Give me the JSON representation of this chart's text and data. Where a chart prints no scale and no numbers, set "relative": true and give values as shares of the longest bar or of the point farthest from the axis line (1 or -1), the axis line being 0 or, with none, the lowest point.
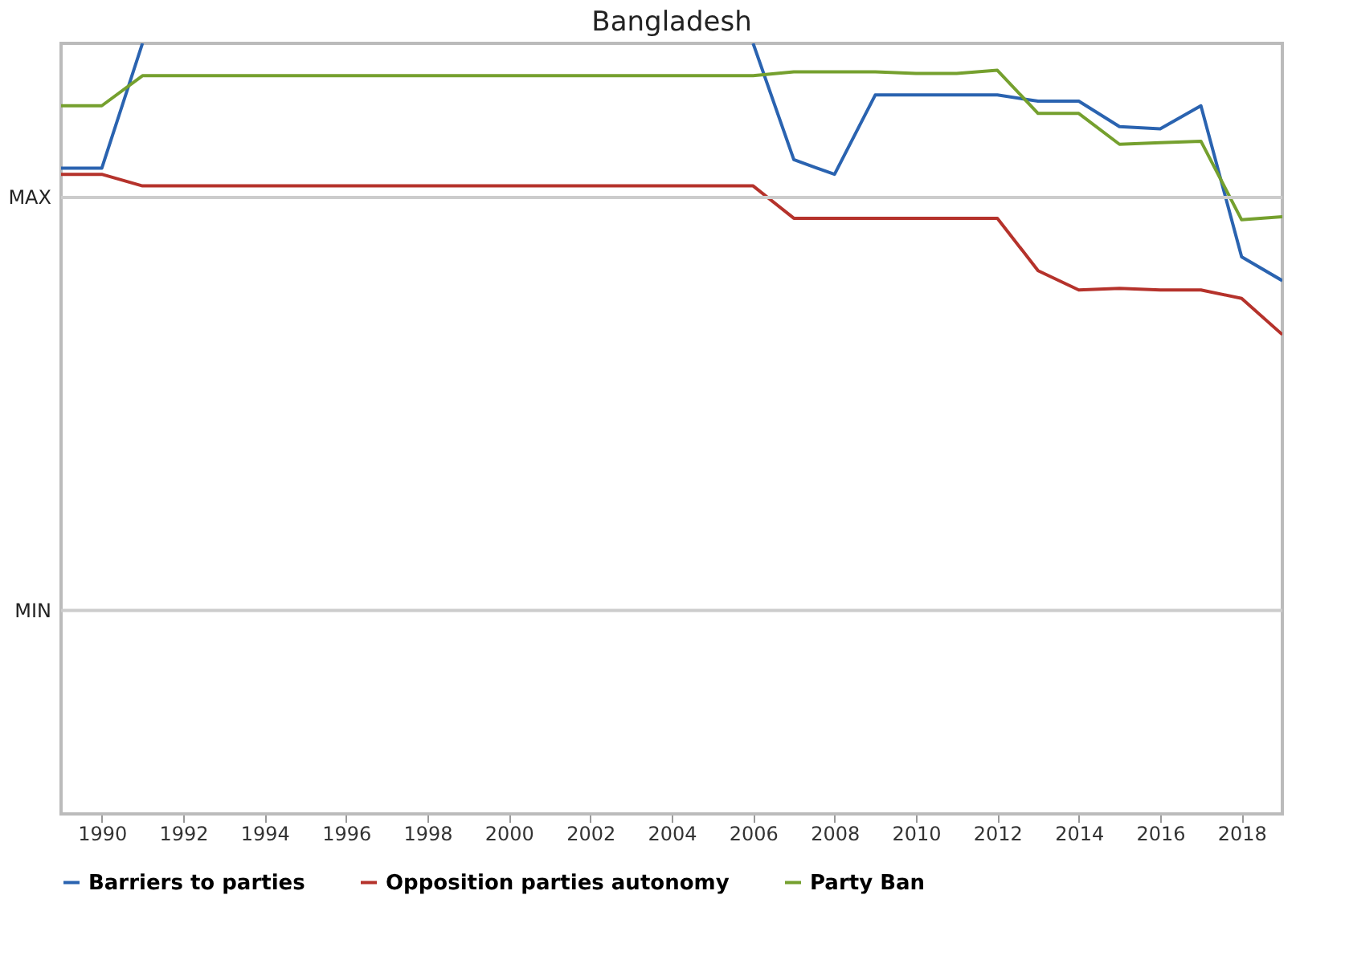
{
  "chart_data": {
    "type": "line",
    "title": "Bangladesh",
    "relative": true,
    "x": [
      1989,
      1990,
      1991,
      1992,
      1993,
      1994,
      1995,
      1996,
      1997,
      1998,
      1999,
      2000,
      2001,
      2002,
      2003,
      2004,
      2005,
      2006,
      2007,
      2008,
      2009,
      2010,
      2011,
      2012,
      2013,
      2014,
      2015,
      2016,
      2017,
      2018,
      2019
    ],
    "series": [
      {
        "name": "Barriers to parties",
        "color": "#2a63b0",
        "values": [
          0.838,
          0.838,
          1,
          null,
          null,
          null,
          null,
          null,
          null,
          null,
          null,
          null,
          null,
          null,
          null,
          null,
          null,
          1,
          0.849,
          0.83,
          0.933,
          0.933,
          0.933,
          0.933,
          0.925,
          0.925,
          0.892,
          0.889,
          0.919,
          0.723,
          0.692
        ]
      },
      {
        "name": "Opposition parties autonomy",
        "color": "#b5322b",
        "values": [
          0.83,
          0.83,
          0.815,
          0.815,
          0.815,
          0.815,
          0.815,
          0.815,
          0.815,
          0.815,
          0.815,
          0.815,
          0.815,
          0.815,
          0.815,
          0.815,
          0.815,
          0.815,
          0.773,
          0.773,
          0.773,
          0.773,
          0.773,
          0.773,
          0.705,
          0.68,
          0.682,
          0.68,
          0.68,
          0.669,
          0.622
        ]
      },
      {
        "name": "Party Ban",
        "color": "#75a02e",
        "values": [
          0.919,
          0.919,
          0.958,
          0.958,
          0.958,
          0.958,
          0.958,
          0.958,
          0.958,
          0.958,
          0.958,
          0.958,
          0.958,
          0.958,
          0.958,
          0.958,
          0.958,
          0.958,
          0.963,
          0.963,
          0.963,
          0.961,
          0.961,
          0.965,
          0.909,
          0.909,
          0.869,
          0.871,
          0.873,
          0.771,
          0.775
        ]
      }
    ],
    "xlim": [
      1989,
      2019
    ],
    "xticks": [
      1990,
      1992,
      1994,
      1996,
      1998,
      2000,
      2002,
      2004,
      2006,
      2008,
      2010,
      2012,
      2014,
      2016,
      2018
    ],
    "ref_lines": [
      {
        "axis": "y",
        "value": 0.8,
        "label": "MAX",
        "color": "#cccccc"
      },
      {
        "axis": "y",
        "value": 0.264,
        "label": "MIN",
        "color": "#cccccc"
      }
    ],
    "legend": "bottom",
    "marker": "none",
    "line_style": "solid"
  }
}
